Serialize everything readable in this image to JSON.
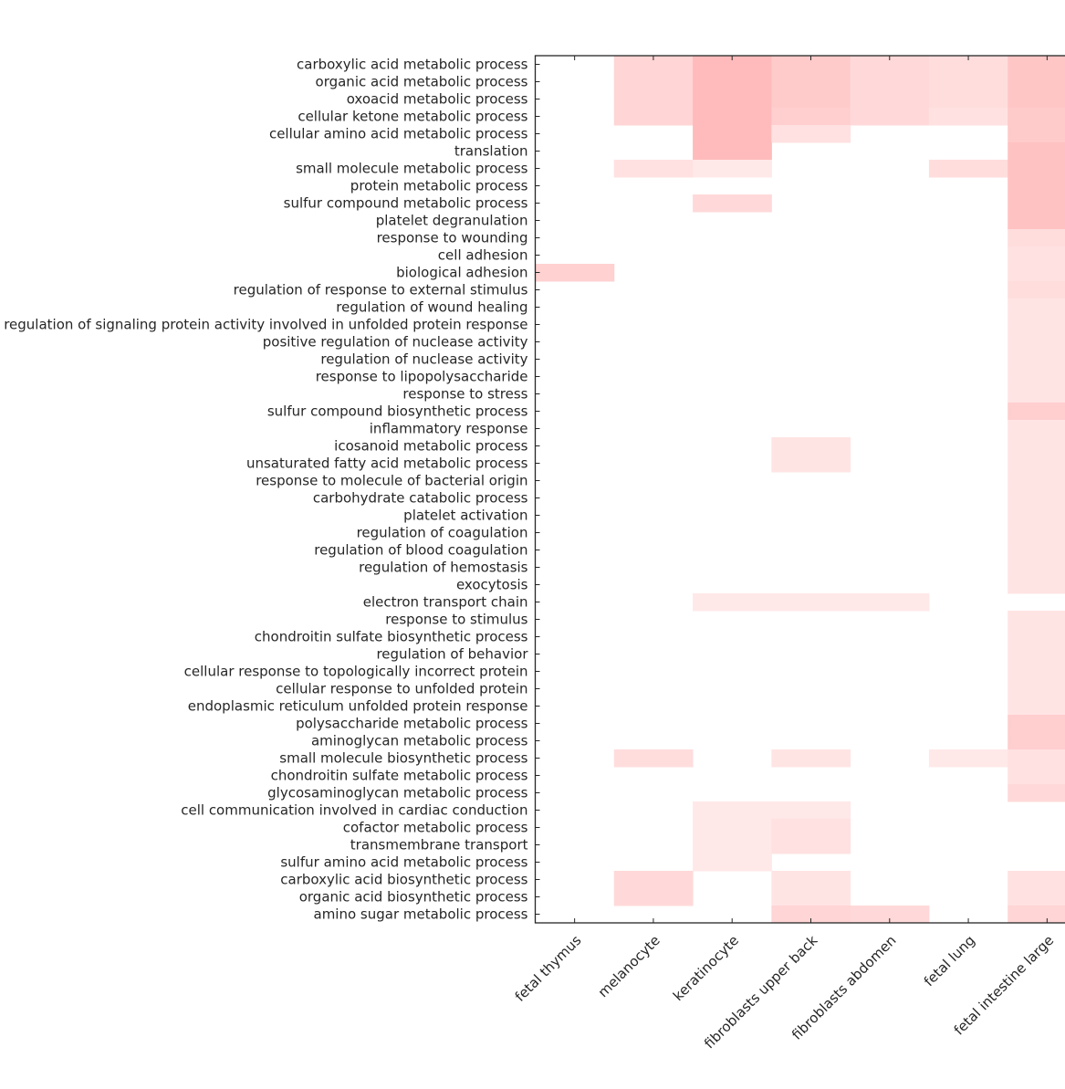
{
  "chart_data": {
    "type": "heatmap",
    "title": "",
    "xlabel": "",
    "ylabel": "",
    "colors": {
      "low": "#ffffff",
      "high": "#ffb3b3",
      "axis": "#262626"
    },
    "columns": [
      "fetal thymus",
      "melanocyte",
      "keratinocyte",
      "fibroblasts upper back",
      "fibroblasts abdomen",
      "fetal lung",
      "fetal intestine large"
    ],
    "rows": [
      "carboxylic acid metabolic process",
      "organic acid metabolic process",
      "oxoacid metabolic process",
      "cellular ketone metabolic process",
      "cellular amino acid metabolic process",
      "translation",
      "small molecule metabolic process",
      "protein metabolic process",
      "sulfur compound metabolic process",
      "platelet degranulation",
      "response to wounding",
      "cell adhesion",
      "biological adhesion",
      "regulation of response to external stimulus",
      "regulation of wound healing",
      "regulation of signaling protein activity involved in unfolded protein response",
      "positive regulation of nuclease activity",
      "regulation of nuclease activity",
      "response to lipopolysaccharide",
      "response to stress",
      "sulfur compound biosynthetic process",
      "inflammatory response",
      "icosanoid metabolic process",
      "unsaturated fatty acid metabolic process",
      "response to molecule of bacterial origin",
      "carbohydrate catabolic process",
      "platelet activation",
      "regulation of coagulation",
      "regulation of blood coagulation",
      "regulation of hemostasis",
      "exocytosis",
      "electron transport chain",
      "response to stimulus",
      "chondroitin sulfate biosynthetic process",
      "regulation of behavior",
      "cellular response to topologically incorrect protein",
      "cellular response to unfolded protein",
      "endoplasmic reticulum unfolded protein response",
      "polysaccharide metabolic process",
      "aminoglycan metabolic process",
      "small molecule biosynthetic process",
      "chondroitin sulfate metabolic process",
      "glycosaminoglycan metabolic process",
      "cell communication involved in cardiac conduction",
      "cofactor metabolic process",
      "transmembrane transport",
      "sulfur amino acid metabolic process",
      "carboxylic acid biosynthetic process",
      "organic acid biosynthetic process",
      "amino sugar metabolic process"
    ],
    "values": [
      [
        0,
        0.55,
        0.9,
        0.7,
        0.5,
        0.45,
        0.75
      ],
      [
        0,
        0.55,
        0.9,
        0.7,
        0.5,
        0.45,
        0.75
      ],
      [
        0,
        0.55,
        0.9,
        0.7,
        0.5,
        0.45,
        0.75
      ],
      [
        0,
        0.55,
        0.9,
        0.65,
        0.5,
        0.4,
        0.7
      ],
      [
        0,
        0,
        0.9,
        0.4,
        0,
        0,
        0.7
      ],
      [
        0,
        0,
        0.9,
        0,
        0,
        0,
        0.8
      ],
      [
        0,
        0.4,
        0.3,
        0,
        0,
        0.45,
        0.8
      ],
      [
        0,
        0,
        0,
        0,
        0,
        0,
        0.8
      ],
      [
        0,
        0,
        0.5,
        0,
        0,
        0,
        0.8
      ],
      [
        0,
        0,
        0,
        0,
        0,
        0,
        0.8
      ],
      [
        0,
        0,
        0,
        0,
        0,
        0,
        0.45
      ],
      [
        0,
        0,
        0,
        0,
        0,
        0,
        0.4
      ],
      [
        0.6,
        0,
        0,
        0,
        0,
        0,
        0.4
      ],
      [
        0,
        0,
        0,
        0,
        0,
        0,
        0.45
      ],
      [
        0,
        0,
        0,
        0,
        0,
        0,
        0.35
      ],
      [
        0,
        0,
        0,
        0,
        0,
        0,
        0.35
      ],
      [
        0,
        0,
        0,
        0,
        0,
        0,
        0.35
      ],
      [
        0,
        0,
        0,
        0,
        0,
        0,
        0.35
      ],
      [
        0,
        0,
        0,
        0,
        0,
        0,
        0.35
      ],
      [
        0,
        0,
        0,
        0,
        0,
        0,
        0.35
      ],
      [
        0,
        0,
        0,
        0,
        0,
        0,
        0.65
      ],
      [
        0,
        0,
        0,
        0,
        0,
        0,
        0.35
      ],
      [
        0,
        0,
        0,
        0.35,
        0,
        0,
        0.35
      ],
      [
        0,
        0,
        0,
        0.35,
        0,
        0,
        0.35
      ],
      [
        0,
        0,
        0,
        0,
        0,
        0,
        0.35
      ],
      [
        0,
        0,
        0,
        0,
        0,
        0,
        0.35
      ],
      [
        0,
        0,
        0,
        0,
        0,
        0,
        0.35
      ],
      [
        0,
        0,
        0,
        0,
        0,
        0,
        0.35
      ],
      [
        0,
        0,
        0,
        0,
        0,
        0,
        0.35
      ],
      [
        0,
        0,
        0,
        0,
        0,
        0,
        0.35
      ],
      [
        0,
        0,
        0,
        0,
        0,
        0,
        0.35
      ],
      [
        0,
        0,
        0.3,
        0.3,
        0.3,
        0,
        0
      ],
      [
        0,
        0,
        0,
        0,
        0,
        0,
        0.35
      ],
      [
        0,
        0,
        0,
        0,
        0,
        0,
        0.35
      ],
      [
        0,
        0,
        0,
        0,
        0,
        0,
        0.35
      ],
      [
        0,
        0,
        0,
        0,
        0,
        0,
        0.35
      ],
      [
        0,
        0,
        0,
        0,
        0,
        0,
        0.35
      ],
      [
        0,
        0,
        0,
        0,
        0,
        0,
        0.35
      ],
      [
        0,
        0,
        0,
        0,
        0,
        0,
        0.65
      ],
      [
        0,
        0,
        0,
        0,
        0,
        0,
        0.65
      ],
      [
        0,
        0.45,
        0,
        0.35,
        0,
        0.3,
        0.4
      ],
      [
        0,
        0,
        0,
        0,
        0,
        0,
        0.4
      ],
      [
        0,
        0,
        0,
        0,
        0,
        0,
        0.5
      ],
      [
        0,
        0,
        0.3,
        0.3,
        0,
        0,
        0
      ],
      [
        0,
        0,
        0.3,
        0.4,
        0,
        0,
        0
      ],
      [
        0,
        0,
        0.3,
        0.4,
        0,
        0,
        0
      ],
      [
        0,
        0,
        0.3,
        0,
        0,
        0,
        0
      ],
      [
        0,
        0.5,
        0,
        0.35,
        0,
        0,
        0.4
      ],
      [
        0,
        0.5,
        0,
        0.35,
        0,
        0,
        0.4
      ],
      [
        0,
        0,
        0,
        0.55,
        0.5,
        0,
        0.55
      ]
    ],
    "grid": false,
    "legend": "none"
  }
}
